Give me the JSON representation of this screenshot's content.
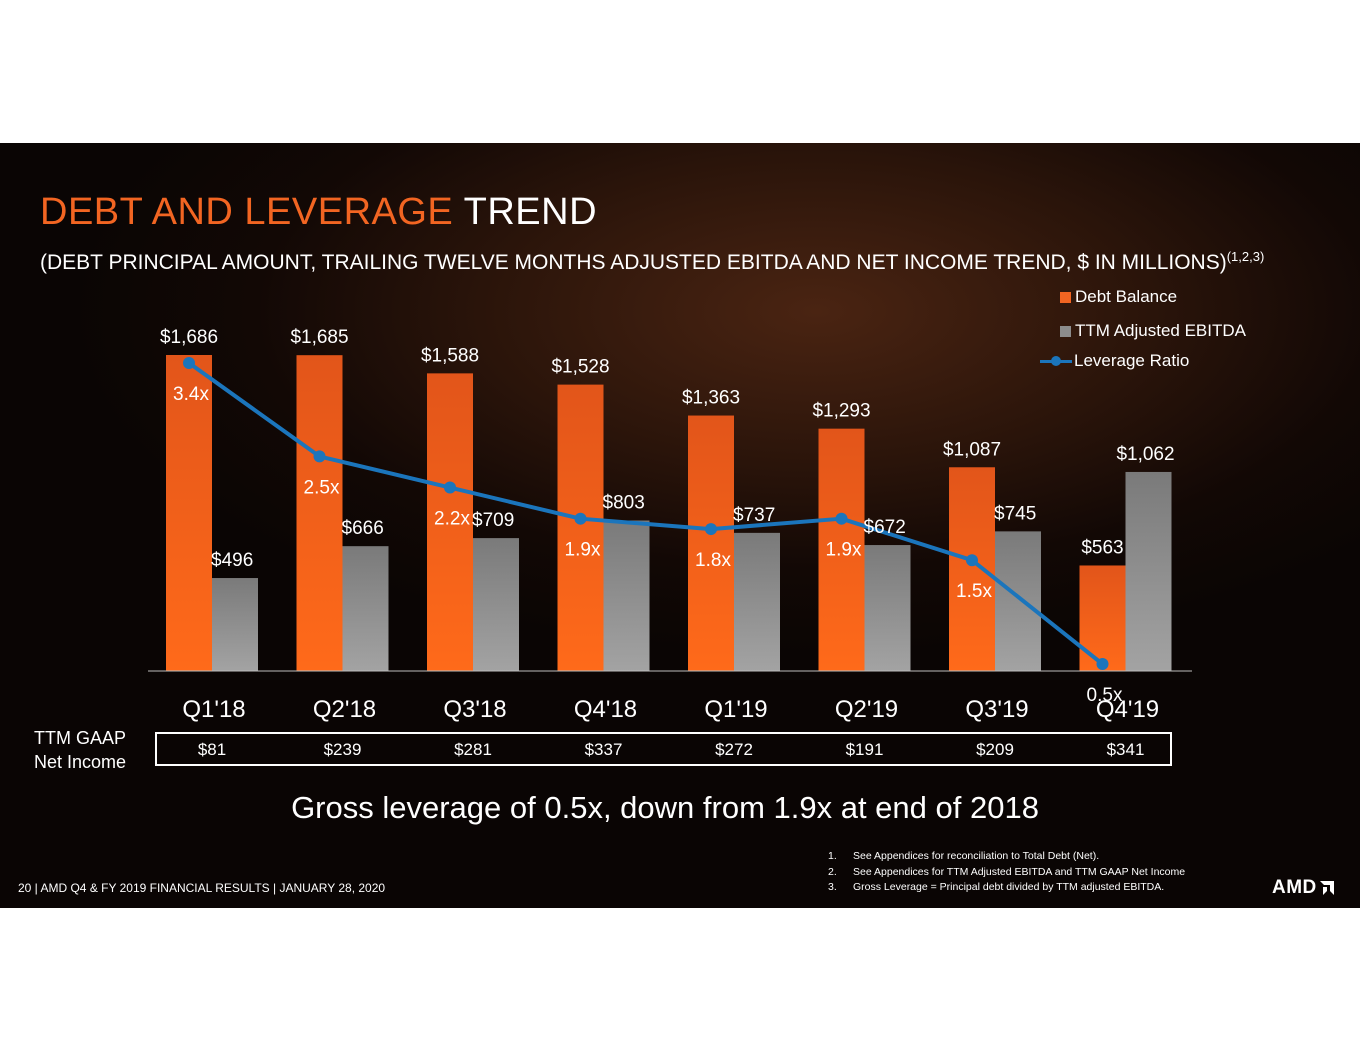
{
  "title": {
    "part1": "DEBT AND LEVERAGE",
    "part2": "TREND"
  },
  "subtitle": {
    "text": "(DEBT PRINCIPAL AMOUNT, TRAILING TWELVE MONTHS ADJUSTED EBITDA AND NET INCOME TREND, $ IN MILLIONS)",
    "sup": "(1,2,3)"
  },
  "colors": {
    "debt": "#f26522",
    "ebitda": "#8c8c8c",
    "leverage": "#1b75bc",
    "title_accent": "#f26522"
  },
  "chart_data": {
    "type": "bar",
    "categories": [
      "Q1'18",
      "Q2'18",
      "Q3'18",
      "Q4'18",
      "Q1'19",
      "Q2'19",
      "Q3'19",
      "Q4'19"
    ],
    "series": [
      {
        "name": "Debt Balance",
        "type": "bar",
        "values": [
          1686,
          1685,
          1588,
          1528,
          1363,
          1293,
          1087,
          563
        ],
        "labels": [
          "$1,686",
          "$1,685",
          "$1,588",
          "$1,528",
          "$1,363",
          "$1,293",
          "$1,087",
          "$563"
        ]
      },
      {
        "name": "TTM Adjusted EBITDA",
        "type": "bar",
        "values": [
          496,
          666,
          709,
          803,
          737,
          672,
          745,
          1062
        ],
        "labels": [
          "$496",
          "$666",
          "$709",
          "$803",
          "$737",
          "$672",
          "$745",
          "$1,062"
        ]
      },
      {
        "name": "Leverage Ratio",
        "type": "line",
        "values": [
          3.4,
          2.5,
          2.2,
          1.9,
          1.8,
          1.9,
          1.5,
          0.5
        ],
        "labels": [
          "3.4x",
          "2.5x",
          "2.2x",
          "1.9x",
          "1.8x",
          "1.9x",
          "1.5x",
          "0.5x"
        ]
      }
    ],
    "legend_position": "top-right",
    "grid": false
  },
  "net_income": {
    "label_line1": "TTM GAAP",
    "label_line2": "Net Income",
    "values": [
      "$81",
      "$239",
      "$281",
      "$337",
      "$272",
      "$191",
      "$209",
      "$341"
    ]
  },
  "callout": "Gross leverage of 0.5x, down from 1.9x at end of 2018",
  "footnotes": [
    {
      "n": "1.",
      "text": "See  Appendices for  reconciliation to Total Debt (Net)."
    },
    {
      "n": "2.",
      "text": "See Appendices for TTM Adjusted EBITDA and TTM GAAP Net Income"
    },
    {
      "n": "3.",
      "text": "Gross Leverage  = Principal debt divided by TTM adjusted EBITDA."
    }
  ],
  "footer": "20  | AMD Q4 & FY 2019 FINANCIAL RESULTS | JANUARY 28, 2020",
  "logo": "AMD"
}
